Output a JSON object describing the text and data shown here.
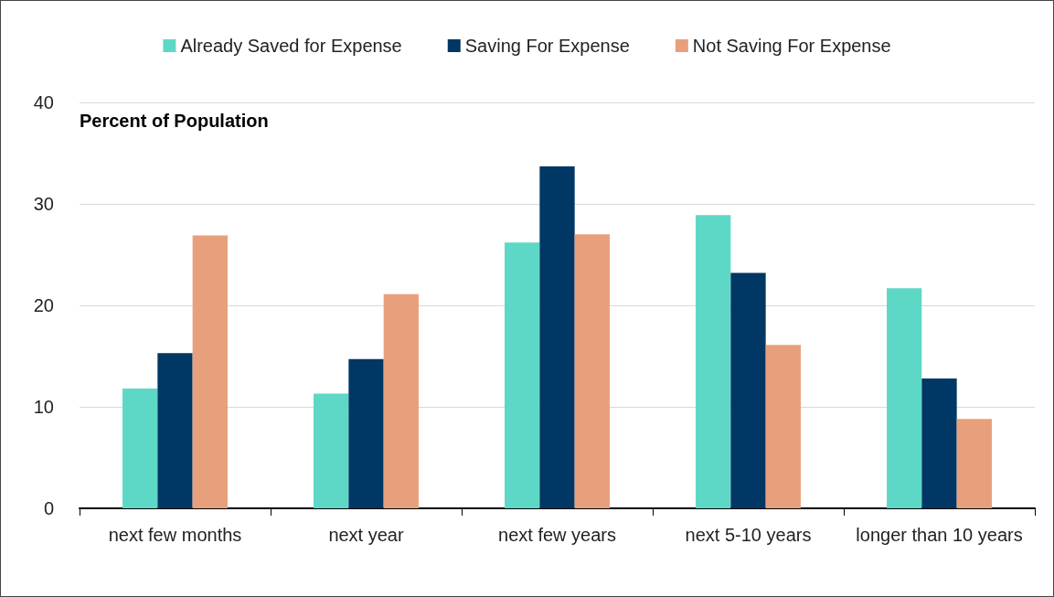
{
  "chart_data": {
    "type": "bar",
    "ylabel": "Percent of Population",
    "categories": [
      "next few months",
      "next year",
      "next few years",
      "next 5-10 years",
      "longer than 10 years"
    ],
    "series": [
      {
        "name": "Already Saved for Expense",
        "color": "#5ed8c6",
        "values": [
          11.8,
          11.3,
          26.2,
          28.9,
          21.7
        ]
      },
      {
        "name": "Saving For Expense",
        "color": "#003764",
        "values": [
          15.3,
          14.7,
          33.7,
          23.2,
          12.8
        ]
      },
      {
        "name": "Not Saving For Expense",
        "color": "#e8a07c",
        "values": [
          26.9,
          21.1,
          27.0,
          16.1,
          8.8
        ]
      }
    ],
    "ylim": [
      0,
      40
    ],
    "yticks": [
      0,
      10,
      20,
      30,
      40
    ],
    "grid": "y",
    "legend": "top"
  }
}
